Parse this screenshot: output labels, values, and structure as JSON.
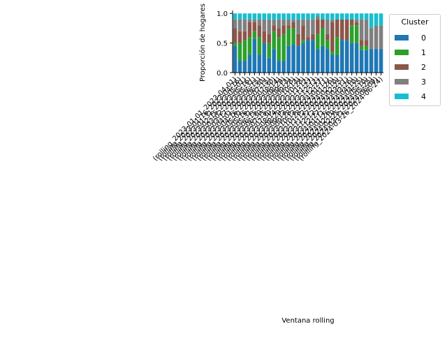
{
  "chart_data": {
    "type": "bar",
    "stacked": true,
    "title": "",
    "xlabel": "Ventana rolling",
    "ylabel": "Proporción de hogares",
    "ylim": [
      0,
      1.05
    ],
    "yticks": [
      0.0,
      0.5,
      1.0
    ],
    "ytick_labels": [
      "0.0",
      "0.5",
      "1.0"
    ],
    "legend": {
      "title": "Cluster",
      "placement": "outside-top-right"
    },
    "categories": [
      "(rolling_2023-01-01_2023-04-01)",
      "(rolling_2023-01-16_2023-04-16)",
      "(rolling_2023-01-31_2023-05-01)",
      "(rolling_2023-02-15_2023-05-16)",
      "(rolling_2023-03-02_2023-05-31)",
      "(rolling_2023-03-17_2023-06-15)",
      "(rolling_2023-04-01_2023-06-30)",
      "(rolling_2023-04-16_2023-07-15)",
      "(rolling_2023-05-01_2023-07-30)",
      "(rolling_2023-05-16_2023-08-14)",
      "(rolling_2023-05-31_2023-08-29)",
      "(rolling_2023-06-15_2023-09-13)",
      "(rolling_2023-06-30_2023-09-28)",
      "(rolling_2023-07-15_2023-10-13)",
      "(rolling_2023-07-30_2023-10-28)",
      "(rolling_2023-08-14_2023-11-12)",
      "(rolling_2023-08-29_2023-11-27)",
      "(rolling_2023-09-13_2023-12-12)",
      "(rolling_2023-09-28_2023-12-27)",
      "(rolling_2023-10-13_2024-01-11)",
      "(rolling_2023-10-28_2024-01-26)",
      "(rolling_2023-11-12_2024-02-10)",
      "(rolling_2023-11-27_2024-02-25)",
      "(rolling_2023-12-12_2024-03-11)",
      "(rolling_2023-12-27_2024-03-26)",
      "(rolling_2024-01-11_2024-04-10)",
      "(rolling_2024-01-26_2024-04-25)",
      "(rolling_2024-02-10_2024-05-10)",
      "(rolling_2024-02-25_2024-05-25)",
      "(rolling_2024-03-11_2024-06-09)",
      "(rolling_2024-03-26_2024-06-24)"
    ],
    "series": [
      {
        "name": "0",
        "color": "#1f77b4",
        "values": [
          0.45,
          0.2,
          0.2,
          0.3,
          0.57,
          0.3,
          0.5,
          0.25,
          0.4,
          0.2,
          0.2,
          0.45,
          0.48,
          0.45,
          0.5,
          0.55,
          0.55,
          0.4,
          0.45,
          0.4,
          0.3,
          0.3,
          0.55,
          0.55,
          0.5,
          0.5,
          0.38,
          0.38,
          0.4,
          0.4,
          0.4
        ]
      },
      {
        "name": "1",
        "color": "#2ca02c",
        "values": [
          0.05,
          0.3,
          0.35,
          0.3,
          0.13,
          0.3,
          0.0,
          0.25,
          0.3,
          0.4,
          0.45,
          0.3,
          0.27,
          0.0,
          0.05,
          0.0,
          0.0,
          0.25,
          0.3,
          0.15,
          0.05,
          0.3,
          0.0,
          0.0,
          0.3,
          0.3,
          0.07,
          0.07,
          0.0,
          0.0,
          0.0
        ]
      },
      {
        "name": "2",
        "color": "#8c564b",
        "values": [
          0.25,
          0.2,
          0.15,
          0.25,
          0.15,
          0.2,
          0.2,
          0.15,
          0.1,
          0.15,
          0.15,
          0.05,
          0.1,
          0.2,
          0.25,
          0.05,
          0.1,
          0.25,
          0.15,
          0.1,
          0.5,
          0.3,
          0.35,
          0.35,
          0.1,
          0.05,
          0.1,
          0.1,
          0.0,
          0.0,
          0.0
        ]
      },
      {
        "name": "3",
        "color": "#7f7f7f",
        "values": [
          0.15,
          0.2,
          0.2,
          0.05,
          0.05,
          0.1,
          0.2,
          0.25,
          0.1,
          0.15,
          0.1,
          0.1,
          0.05,
          0.25,
          0.1,
          0.3,
          0.25,
          0.05,
          0.0,
          0.25,
          0.05,
          0.0,
          0.0,
          0.0,
          0.0,
          0.05,
          0.35,
          0.35,
          0.35,
          0.4,
          0.4
        ]
      },
      {
        "name": "4",
        "color": "#17becf",
        "values": [
          0.1,
          0.1,
          0.1,
          0.1,
          0.1,
          0.1,
          0.1,
          0.1,
          0.1,
          0.1,
          0.1,
          0.1,
          0.1,
          0.1,
          0.1,
          0.1,
          0.1,
          0.05,
          0.1,
          0.1,
          0.1,
          0.1,
          0.1,
          0.1,
          0.1,
          0.1,
          0.1,
          0.1,
          0.25,
          0.2,
          0.2
        ]
      }
    ]
  }
}
